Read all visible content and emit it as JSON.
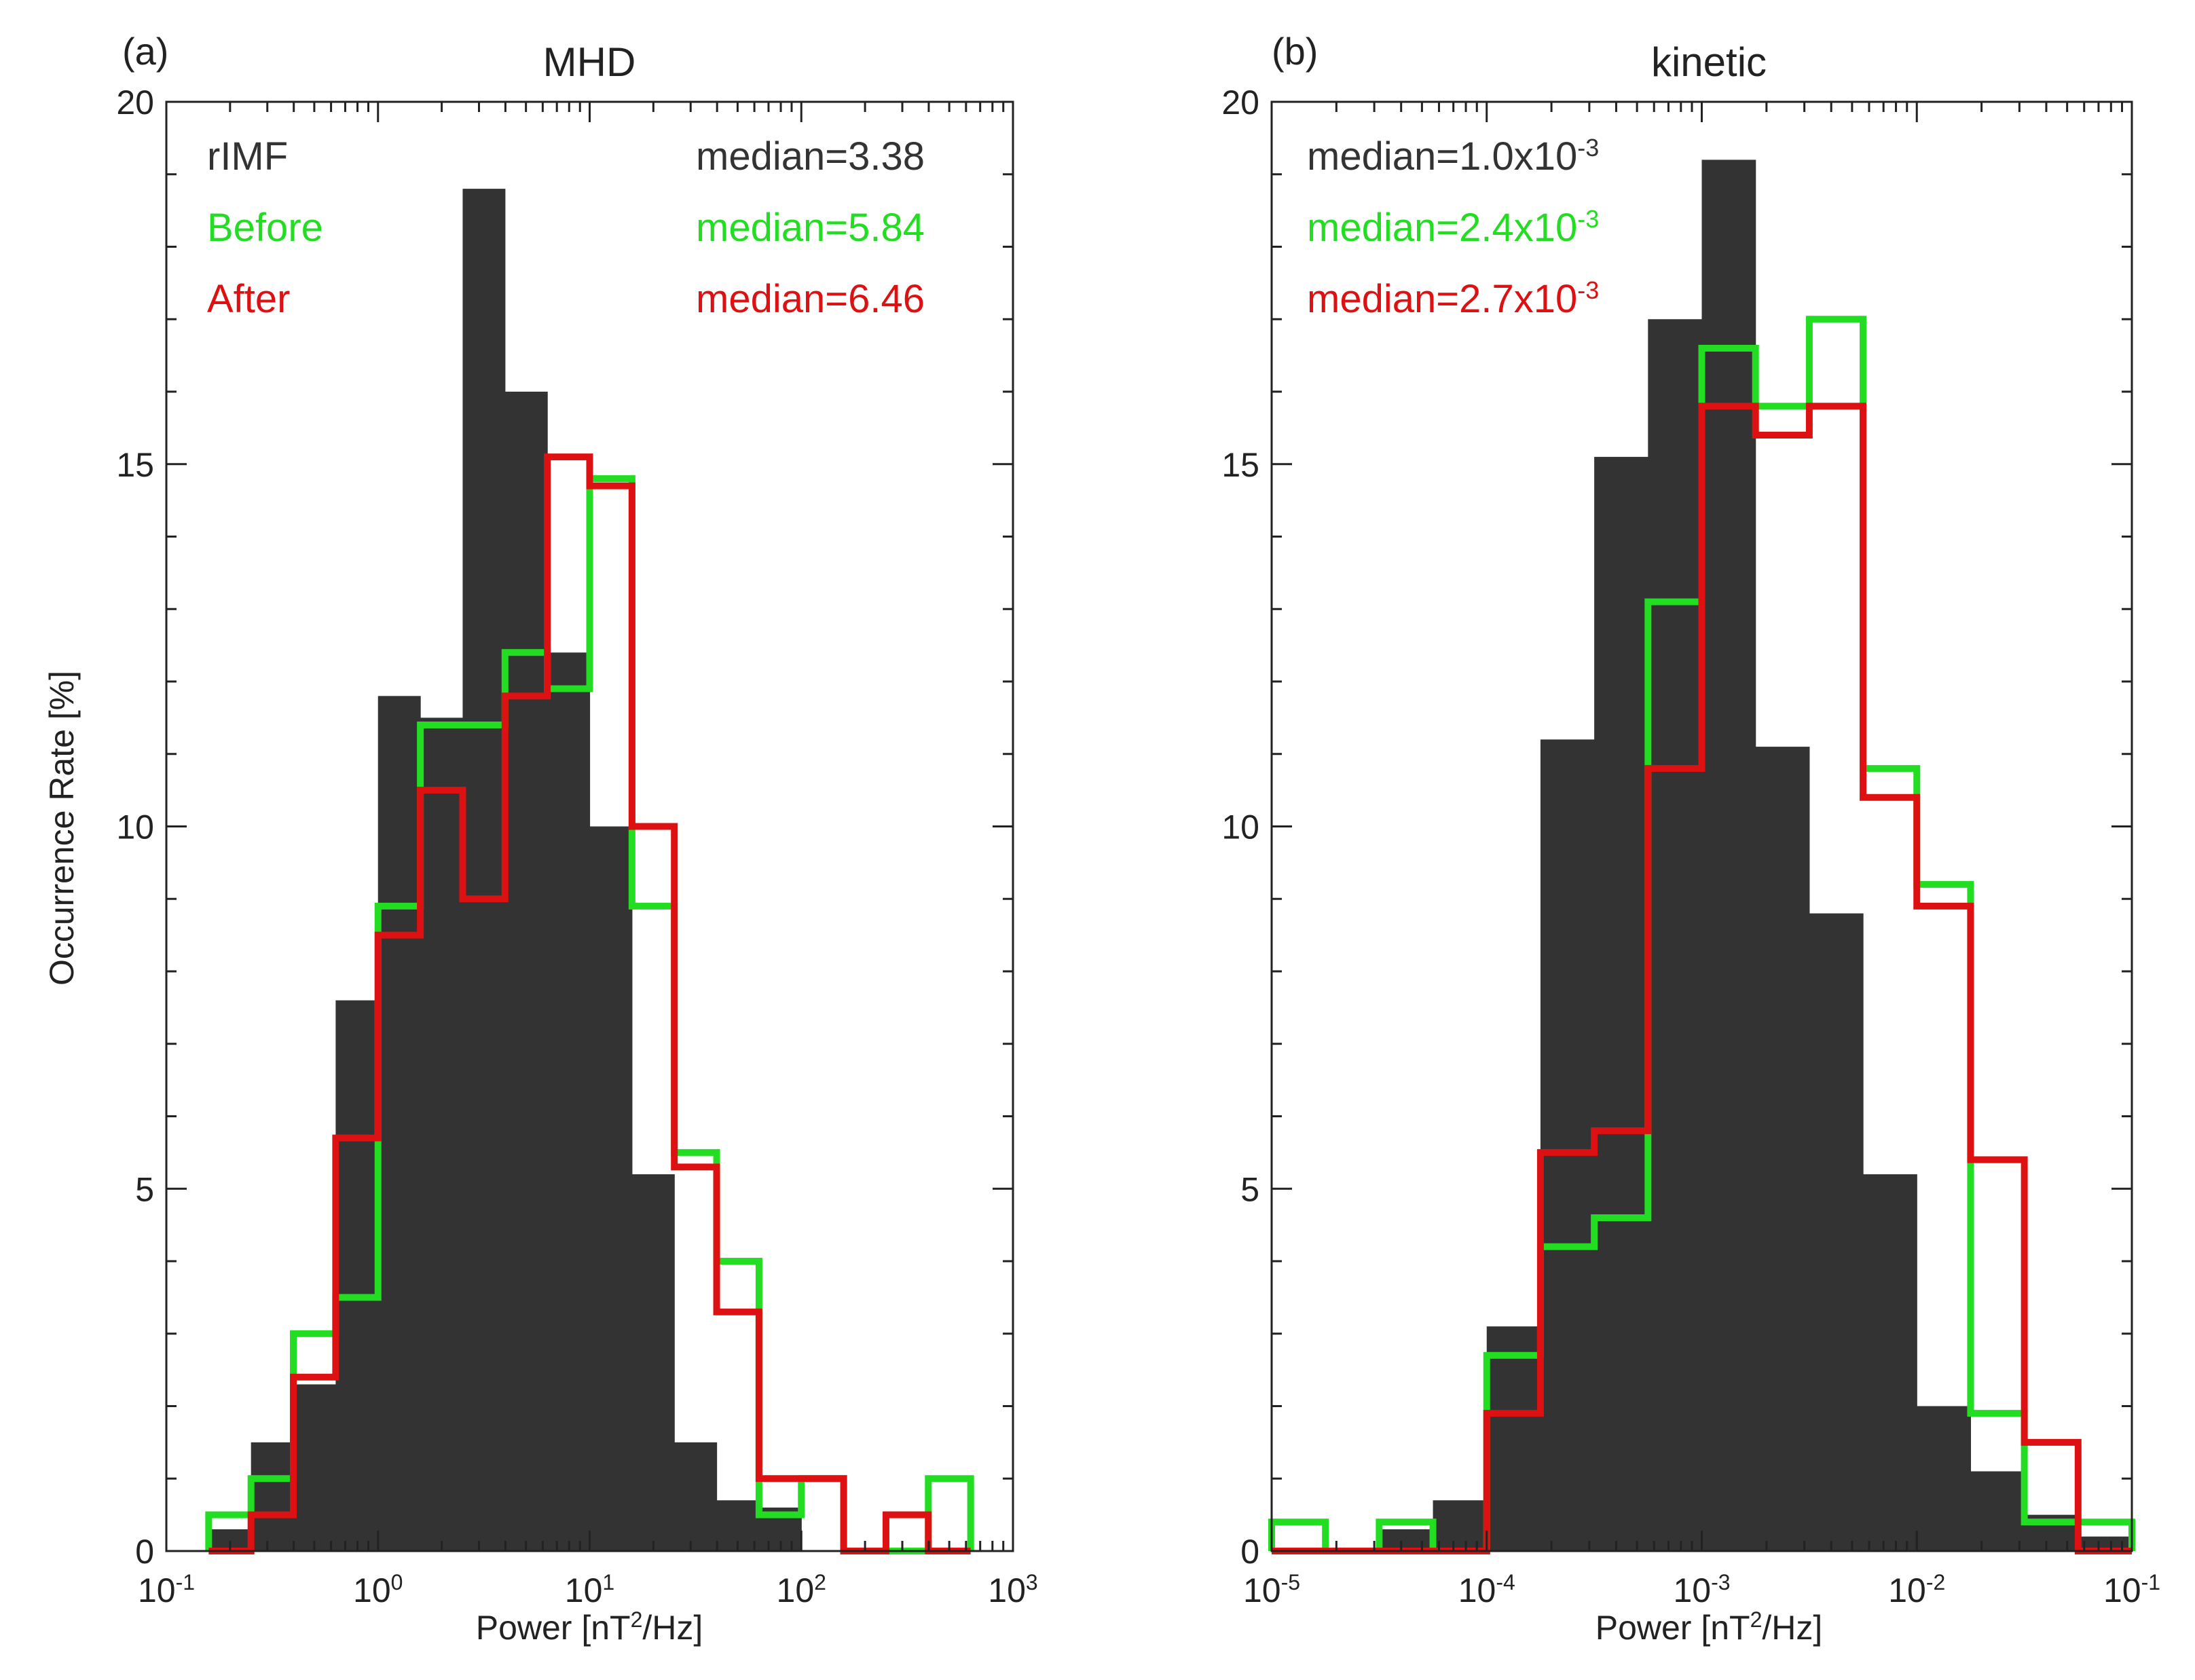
{
  "y_axis_label": "Occurrence Rate [%]",
  "chart_data": [
    {
      "type": "histogram",
      "panel_label": "(a)",
      "title": "MHD",
      "xlabel": {
        "pre": "Power [nT",
        "sup": "2",
        "post": "/Hz]"
      },
      "ylabel": "Occurrence Rate [%]",
      "x_scale": "log",
      "xlim_log10": [
        -1,
        3
      ],
      "ylim": [
        0,
        20
      ],
      "x_ticks": [
        {
          "exp": -1,
          "base": "10",
          "sup": "-1"
        },
        {
          "exp": 0,
          "base": "10",
          "sup": "0"
        },
        {
          "exp": 1,
          "base": "10",
          "sup": "1"
        },
        {
          "exp": 2,
          "base": "10",
          "sup": "2"
        },
        {
          "exp": 3,
          "base": "10",
          "sup": "3"
        }
      ],
      "y_ticks": [
        {
          "value": 0,
          "label": "0"
        },
        {
          "value": 5,
          "label": "5"
        },
        {
          "value": 10,
          "label": "10"
        },
        {
          "value": 15,
          "label": "15"
        },
        {
          "value": 20,
          "label": "20"
        }
      ],
      "bin_edges_log10": [
        -0.8,
        -0.6,
        -0.4,
        -0.2,
        0.0,
        0.2,
        0.4,
        0.6,
        0.8,
        1.0,
        1.2,
        1.4,
        1.6,
        1.8,
        2.0,
        2.2,
        2.4,
        2.6,
        2.8
      ],
      "series": [
        {
          "name": "rIMF",
          "color": "#333333",
          "style": "filled",
          "values": [
            0.3,
            1.5,
            2.3,
            7.6,
            11.8,
            11.5,
            18.8,
            16.0,
            12.4,
            10.0,
            5.2,
            1.5,
            0.7,
            0.6,
            0,
            0,
            0,
            0
          ]
        },
        {
          "name": "Before",
          "color": "#22dd22",
          "style": "step",
          "values": [
            0.5,
            1.0,
            3.0,
            3.5,
            8.9,
            11.4,
            11.4,
            12.4,
            11.9,
            14.8,
            8.9,
            5.5,
            4.0,
            0.5,
            1.0,
            0,
            0,
            1.0
          ]
        },
        {
          "name": "After",
          "color": "#dd1111",
          "style": "step",
          "values": [
            0,
            0.5,
            2.4,
            5.7,
            8.5,
            10.5,
            9.0,
            11.8,
            15.1,
            14.7,
            10.0,
            5.3,
            3.3,
            1.0,
            1.0,
            0,
            0.5,
            0
          ]
        }
      ],
      "legend": [
        {
          "label": "rIMF",
          "color": "#333333",
          "median": "median=3.38"
        },
        {
          "label": "Before",
          "color": "#22dd22",
          "median": "median=5.84"
        },
        {
          "label": "After",
          "color": "#dd1111",
          "median": "median=6.46"
        }
      ]
    },
    {
      "type": "histogram",
      "panel_label": "(b)",
      "title": "kinetic",
      "xlabel": {
        "pre": "Power [nT",
        "sup": "2",
        "post": "/Hz]"
      },
      "ylabel": "",
      "x_scale": "log",
      "xlim_log10": [
        -5,
        -1
      ],
      "ylim": [
        0,
        20
      ],
      "x_ticks": [
        {
          "exp": -5,
          "base": "10",
          "sup": "-5"
        },
        {
          "exp": -4,
          "base": "10",
          "sup": "-4"
        },
        {
          "exp": -3,
          "base": "10",
          "sup": "-3"
        },
        {
          "exp": -2,
          "base": "10",
          "sup": "-2"
        },
        {
          "exp": -1,
          "base": "10",
          "sup": "-1"
        }
      ],
      "y_ticks": [
        {
          "value": 0,
          "label": "0"
        },
        {
          "value": 5,
          "label": "5"
        },
        {
          "value": 10,
          "label": "10"
        },
        {
          "value": 15,
          "label": "15"
        },
        {
          "value": 20,
          "label": "20"
        }
      ],
      "bin_edges_log10": [
        -5.0,
        -4.75,
        -4.5,
        -4.25,
        -4.0,
        -3.75,
        -3.5,
        -3.25,
        -3.0,
        -2.75,
        -2.5,
        -2.25,
        -2.0,
        -1.75,
        -1.5,
        -1.25,
        -1.0
      ],
      "series": [
        {
          "name": "rIMF",
          "color": "#333333",
          "style": "filled",
          "values": [
            0,
            0,
            0.3,
            0.7,
            3.1,
            11.2,
            15.1,
            17.0,
            19.2,
            11.1,
            8.8,
            5.2,
            2.0,
            1.1,
            0.5,
            0.2
          ]
        },
        {
          "name": "Before",
          "color": "#22dd22",
          "style": "step",
          "values": [
            0.4,
            0,
            0.4,
            0,
            2.7,
            4.2,
            4.6,
            13.1,
            16.6,
            15.8,
            17.0,
            10.8,
            9.2,
            1.9,
            0.4,
            0.4
          ]
        },
        {
          "name": "After",
          "color": "#dd1111",
          "style": "step",
          "values": [
            0,
            0,
            0,
            0,
            1.9,
            5.5,
            5.8,
            10.8,
            15.8,
            15.4,
            15.8,
            10.4,
            8.9,
            5.4,
            1.5,
            0
          ]
        }
      ],
      "legend": [
        {
          "label": "",
          "color": "#333333",
          "median": {
            "pre": "median=1.0x10",
            "sup": "-3"
          }
        },
        {
          "label": "",
          "color": "#22dd22",
          "median": {
            "pre": "median=2.4x10",
            "sup": "-3"
          }
        },
        {
          "label": "",
          "color": "#dd1111",
          "median": {
            "pre": "median=2.7x10",
            "sup": "-3"
          }
        }
      ]
    }
  ]
}
